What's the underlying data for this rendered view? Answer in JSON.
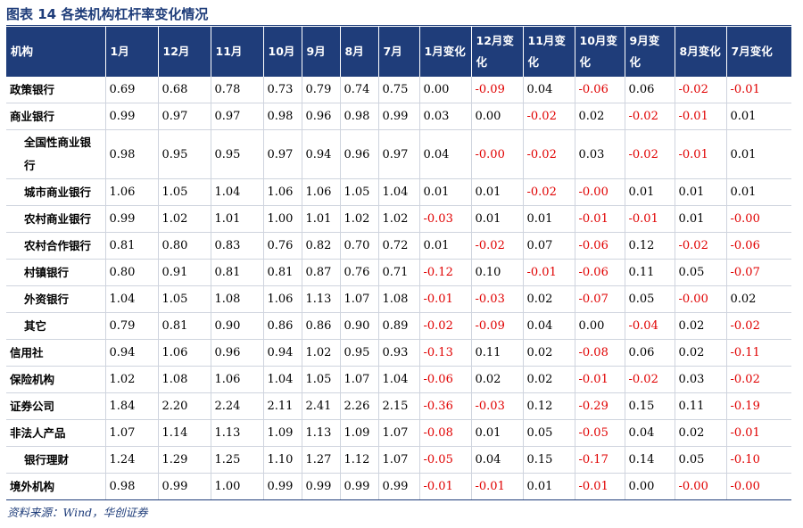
{
  "title": "图表 14   各类机构杠杆率变化情况",
  "source": "资料来源：Wind，华创证券",
  "columns": [
    "机构",
    "1月",
    "12月",
    "11月",
    "10月",
    "9月",
    "8月",
    "7月",
    "1月变化",
    "12月变化",
    "11月变化",
    "10月变化",
    "9月变化",
    "8月变化",
    "7月变化"
  ],
  "colors": {
    "header_bg": "#1f3d7a",
    "negative": "#e00000",
    "text": "#000000"
  },
  "rows": [
    {
      "name": "政策银行",
      "level": 1,
      "values": [
        "0.69",
        "0.68",
        "0.78",
        "0.73",
        "0.79",
        "0.74",
        "0.75",
        "0.00",
        "-0.09",
        "0.04",
        "-0.06",
        "0.06",
        "-0.02",
        "-0.01"
      ]
    },
    {
      "name": "商业银行",
      "level": 1,
      "values": [
        "0.99",
        "0.97",
        "0.97",
        "0.98",
        "0.96",
        "0.98",
        "0.99",
        "0.03",
        "0.00",
        "-0.02",
        "0.02",
        "-0.02",
        "-0.01",
        "0.01"
      ]
    },
    {
      "name": "全国性商业银行",
      "level": 2,
      "values": [
        "0.98",
        "0.95",
        "0.95",
        "0.97",
        "0.94",
        "0.96",
        "0.97",
        "0.04",
        "-0.00",
        "-0.02",
        "0.03",
        "-0.02",
        "-0.01",
        "0.01"
      ]
    },
    {
      "name": "城市商业银行",
      "level": 2,
      "values": [
        "1.06",
        "1.05",
        "1.04",
        "1.06",
        "1.06",
        "1.05",
        "1.04",
        "0.01",
        "0.01",
        "-0.02",
        "-0.00",
        "0.01",
        "0.01",
        "0.01"
      ]
    },
    {
      "name": "农村商业银行",
      "level": 2,
      "values": [
        "0.99",
        "1.02",
        "1.01",
        "1.00",
        "1.01",
        "1.02",
        "1.02",
        "-0.03",
        "0.01",
        "0.01",
        "-0.01",
        "-0.01",
        "0.01",
        "-0.00"
      ]
    },
    {
      "name": "农村合作银行",
      "level": 2,
      "values": [
        "0.81",
        "0.80",
        "0.83",
        "0.76",
        "0.82",
        "0.70",
        "0.72",
        "0.01",
        "-0.02",
        "0.07",
        "-0.06",
        "0.12",
        "-0.02",
        "-0.06"
      ]
    },
    {
      "name": "村镇银行",
      "level": 2,
      "values": [
        "0.80",
        "0.91",
        "0.81",
        "0.81",
        "0.87",
        "0.76",
        "0.71",
        "-0.12",
        "0.10",
        "-0.01",
        "-0.06",
        "0.11",
        "0.05",
        "-0.07"
      ]
    },
    {
      "name": "外资银行",
      "level": 2,
      "values": [
        "1.04",
        "1.05",
        "1.08",
        "1.06",
        "1.13",
        "1.07",
        "1.08",
        "-0.01",
        "-0.03",
        "0.02",
        "-0.07",
        "0.05",
        "-0.00",
        "0.02"
      ]
    },
    {
      "name": "其它",
      "level": 2,
      "values": [
        "0.79",
        "0.81",
        "0.90",
        "0.86",
        "0.86",
        "0.90",
        "0.89",
        "-0.02",
        "-0.09",
        "0.04",
        "0.00",
        "-0.04",
        "0.02",
        "-0.02"
      ]
    },
    {
      "name": "信用社",
      "level": 1,
      "values": [
        "0.94",
        "1.06",
        "0.96",
        "0.94",
        "1.02",
        "0.95",
        "0.93",
        "-0.13",
        "0.11",
        "0.02",
        "-0.08",
        "0.06",
        "0.02",
        "-0.11"
      ]
    },
    {
      "name": "保险机构",
      "level": 1,
      "values": [
        "1.02",
        "1.08",
        "1.06",
        "1.04",
        "1.05",
        "1.07",
        "1.04",
        "-0.06",
        "0.02",
        "0.02",
        "-0.01",
        "-0.02",
        "0.03",
        "-0.02"
      ]
    },
    {
      "name": "证券公司",
      "level": 1,
      "values": [
        "1.84",
        "2.20",
        "2.24",
        "2.11",
        "2.41",
        "2.26",
        "2.15",
        "-0.36",
        "-0.03",
        "0.12",
        "-0.29",
        "0.15",
        "0.11",
        "-0.19"
      ]
    },
    {
      "name": "非法人产品",
      "level": 1,
      "values": [
        "1.07",
        "1.14",
        "1.13",
        "1.09",
        "1.13",
        "1.09",
        "1.07",
        "-0.08",
        "0.01",
        "0.05",
        "-0.05",
        "0.04",
        "0.02",
        "-0.01"
      ]
    },
    {
      "name": "银行理财",
      "level": 2,
      "values": [
        "1.24",
        "1.29",
        "1.25",
        "1.10",
        "1.27",
        "1.12",
        "1.07",
        "-0.05",
        "0.04",
        "0.15",
        "-0.17",
        "0.14",
        "0.05",
        "-0.10"
      ]
    },
    {
      "name": "境外机构",
      "level": 1,
      "values": [
        "0.98",
        "0.99",
        "1.00",
        "0.99",
        "0.99",
        "0.99",
        "0.99",
        "-0.01",
        "-0.01",
        "0.01",
        "-0.01",
        "0.00",
        "-0.00",
        "-0.00"
      ]
    }
  ]
}
